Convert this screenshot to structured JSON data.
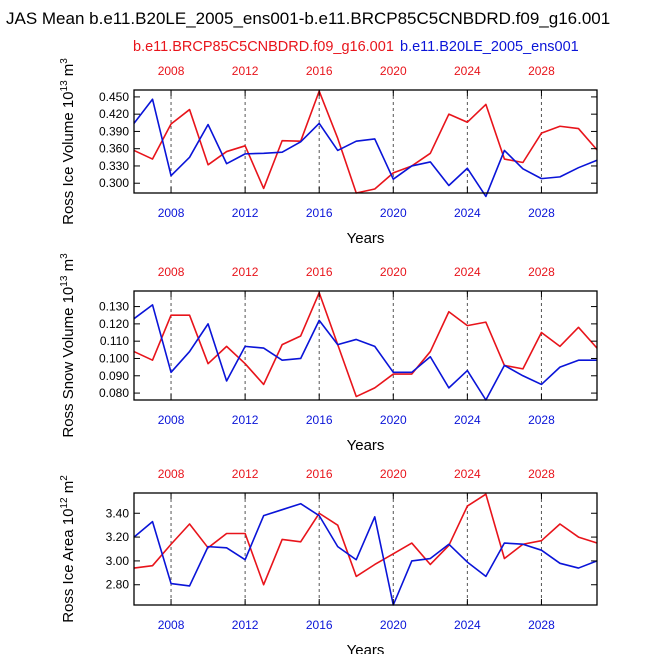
{
  "chart_data": {
    "type": "line",
    "title": "JAS Mean b.e11.B20LE_2005_ens001-b.e11.BRCP85C5CNBDRD.f09_g16.001",
    "legend": [
      {
        "name": "b.e11.BRCP85C5CNBDRD.f09_g16.001",
        "color": "#e8141b"
      },
      {
        "name": "b.e11.B20LE_2005_ens001",
        "color": "#0a14d8"
      }
    ],
    "years": {
      "red": [
        2006,
        2007,
        2008,
        2009,
        2010,
        2011,
        2012,
        2013,
        2014,
        2015,
        2016,
        2017,
        2018,
        2019,
        2020,
        2021,
        2022,
        2023,
        2024,
        2025,
        2026,
        2027,
        2028,
        2029,
        2030,
        2031
      ],
      "blue": [
        2006,
        2007,
        2008,
        2009,
        2010,
        2011,
        2012,
        2013,
        2014,
        2015,
        2016,
        2017,
        2018,
        2019,
        2020,
        2021,
        2022,
        2023,
        2024,
        2025,
        2026,
        2027,
        2028,
        2029,
        2030,
        2031
      ]
    },
    "panels": [
      {
        "id": "ice-volume",
        "ylabel": "Ross Ice Volume 10",
        "ylabel_sup": "13",
        "ylabel_unit": "m",
        "ylabel_unit_sup": "3",
        "xlabel": "Years",
        "xlim": [
          2006,
          2031
        ],
        "ylim": [
          0.283,
          0.462
        ],
        "yticks": [
          0.3,
          0.33,
          0.36,
          0.39,
          0.42,
          0.45
        ],
        "ytick_labels": [
          "0.300",
          "0.330",
          "0.360",
          "0.390",
          "0.420",
          "0.450"
        ],
        "series": [
          {
            "name": "red",
            "values": [
              0.357,
              0.342,
              0.403,
              0.428,
              0.332,
              0.355,
              0.365,
              0.291,
              0.374,
              0.373,
              0.46,
              0.378,
              0.283,
              0.29,
              0.318,
              0.33,
              0.352,
              0.42,
              0.406,
              0.437,
              0.342,
              0.336,
              0.387,
              0.399,
              0.395,
              0.358
            ]
          },
          {
            "name": "blue",
            "values": [
              0.404,
              0.446,
              0.313,
              0.345,
              0.402,
              0.334,
              0.351,
              0.352,
              0.354,
              0.372,
              0.404,
              0.357,
              0.373,
              0.377,
              0.307,
              0.33,
              0.337,
              0.296,
              0.326,
              0.277,
              0.357,
              0.325,
              0.308,
              0.311,
              0.327,
              0.34
            ]
          }
        ]
      },
      {
        "id": "snow-volume",
        "ylabel": "Ross Snow Volume 10",
        "ylabel_sup": "13",
        "ylabel_unit": "m",
        "ylabel_unit_sup": "3",
        "xlabel": "Years",
        "xlim": [
          2006,
          2031
        ],
        "ylim": [
          0.076,
          0.139
        ],
        "yticks": [
          0.08,
          0.09,
          0.1,
          0.11,
          0.12,
          0.13
        ],
        "ytick_labels": [
          "0.080",
          "0.090",
          "0.100",
          "0.110",
          "0.120",
          "0.130"
        ],
        "series": [
          {
            "name": "red",
            "values": [
              0.104,
              0.099,
              0.125,
              0.125,
              0.097,
              0.107,
              0.097,
              0.085,
              0.108,
              0.113,
              0.138,
              0.108,
              0.078,
              0.083,
              0.091,
              0.091,
              0.104,
              0.127,
              0.119,
              0.121,
              0.096,
              0.094,
              0.115,
              0.107,
              0.118,
              0.106
            ]
          },
          {
            "name": "blue",
            "values": [
              0.123,
              0.131,
              0.092,
              0.104,
              0.12,
              0.087,
              0.107,
              0.106,
              0.099,
              0.1,
              0.122,
              0.108,
              0.111,
              0.107,
              0.092,
              0.092,
              0.101,
              0.083,
              0.093,
              0.076,
              0.096,
              0.09,
              0.085,
              0.095,
              0.099,
              0.099
            ]
          }
        ]
      },
      {
        "id": "ice-area",
        "ylabel": "Ross Ice Area 10",
        "ylabel_sup": "12",
        "ylabel_unit": "m",
        "ylabel_unit_sup": "2",
        "xlabel": "Years",
        "xlim": [
          2006,
          2031
        ],
        "ylim": [
          2.63,
          3.57
        ],
        "yticks": [
          2.8,
          3.0,
          3.2,
          3.4
        ],
        "ytick_labels": [
          "2.80",
          "3.00",
          "3.20",
          "3.40"
        ],
        "series": [
          {
            "name": "red",
            "values": [
              2.94,
              2.96,
              3.14,
              3.31,
              3.11,
              3.23,
              3.23,
              2.8,
              3.18,
              3.16,
              3.4,
              3.3,
              2.87,
              2.97,
              3.06,
              3.15,
              2.97,
              3.13,
              3.46,
              3.56,
              3.02,
              3.14,
              3.17,
              3.31,
              3.2,
              3.15
            ]
          },
          {
            "name": "blue",
            "values": [
              3.2,
              3.33,
              2.81,
              2.79,
              3.12,
              3.11,
              3.01,
              3.38,
              3.43,
              3.48,
              3.38,
              3.12,
              3.01,
              3.37,
              2.63,
              3.0,
              3.02,
              3.14,
              2.99,
              2.87,
              3.15,
              3.14,
              3.09,
              2.98,
              2.94,
              3.0
            ]
          }
        ]
      }
    ],
    "xtick_years": [
      2008,
      2012,
      2016,
      2020,
      2024,
      2028
    ],
    "xtick_labels": [
      "2008",
      "2012",
      "2016",
      "2020",
      "2024",
      "2028"
    ],
    "colors": {
      "red": "#e8141b",
      "blue": "#0a14d8",
      "grid": "#555555",
      "axis": "#000000"
    }
  }
}
